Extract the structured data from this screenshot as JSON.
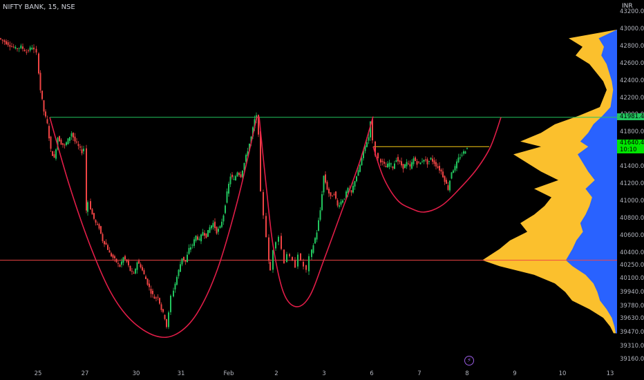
{
  "header": {
    "symbol": "NIFTY BANK, 15, NSE",
    "currency": "INR"
  },
  "price_axis": [
    "43200.00",
    "43000.00",
    "42800.00",
    "42600.00",
    "42400.00",
    "42200.00",
    "42000.00",
    "41800.00",
    "41600.00",
    "41400.00",
    "41200.00",
    "41000.00",
    "40800.00",
    "40600.00",
    "40400.00",
    "40250.00",
    "40100.00",
    "39940.00",
    "39780.00",
    "39630.00",
    "39470.00",
    "39310.00",
    "39160.00"
  ],
  "time_axis": [
    "25",
    "27",
    "30",
    "31",
    "Feb",
    "2",
    "3",
    "6",
    "7",
    "8",
    "9",
    "10",
    "13"
  ],
  "tags": {
    "resistance": "41981.45",
    "last_price": "41640.40",
    "countdown": "10:10"
  },
  "chart_data": {
    "type": "candlestick",
    "title": "NIFTY BANK, 15, NSE",
    "currency": "INR",
    "ylim": [
      39160,
      43200
    ],
    "x_ticks": [
      "25",
      "27",
      "30",
      "31",
      "Feb",
      "2",
      "3",
      "6",
      "7",
      "8",
      "9",
      "10",
      "13"
    ],
    "key_levels": {
      "resistance": 41981.45,
      "support": 40320,
      "inner_resistance": 41640
    },
    "last_price": 41640.4,
    "colors": {
      "up": "#22c55e",
      "down": "#ef4444",
      "curve": "#e11d48",
      "resistance": "#22c55e",
      "support": "#ef4444",
      "inner_line": "#facc15",
      "vp_blue": "#2962ff",
      "vp_yellow": "#fbc02d"
    },
    "path_points": [
      [
        0,
        42900
      ],
      [
        8,
        42860
      ],
      [
        16,
        42820
      ],
      [
        24,
        42780
      ],
      [
        32,
        42800
      ],
      [
        40,
        42740
      ],
      [
        48,
        42800
      ],
      [
        55,
        42720
      ],
      [
        60,
        42300
      ],
      [
        65,
        42050
      ],
      [
        70,
        41900
      ],
      [
        75,
        41600
      ],
      [
        80,
        41500
      ],
      [
        85,
        41750
      ],
      [
        90,
        41680
      ],
      [
        95,
        41650
      ],
      [
        100,
        41720
      ],
      [
        105,
        41800
      ],
      [
        110,
        41700
      ],
      [
        115,
        41640
      ],
      [
        120,
        41580
      ],
      [
        124,
        41620
      ],
      [
        126,
        40900
      ],
      [
        130,
        41000
      ],
      [
        135,
        40850
      ],
      [
        140,
        40750
      ],
      [
        145,
        40700
      ],
      [
        150,
        40550
      ],
      [
        155,
        40500
      ],
      [
        160,
        40400
      ],
      [
        165,
        40350
      ],
      [
        170,
        40300
      ],
      [
        175,
        40250
      ],
      [
        180,
        40350
      ],
      [
        185,
        40300
      ],
      [
        190,
        40200
      ],
      [
        195,
        40150
      ],
      [
        200,
        40300
      ],
      [
        205,
        40250
      ],
      [
        210,
        40150
      ],
      [
        215,
        40050
      ],
      [
        220,
        39950
      ],
      [
        225,
        39880
      ],
      [
        230,
        39900
      ],
      [
        235,
        39750
      ],
      [
        240,
        39650
      ],
      [
        243,
        39550
      ],
      [
        246,
        39700
      ],
      [
        250,
        39900
      ],
      [
        255,
        40050
      ],
      [
        260,
        40200
      ],
      [
        265,
        40350
      ],
      [
        270,
        40300
      ],
      [
        275,
        40450
      ],
      [
        280,
        40500
      ],
      [
        285,
        40600
      ],
      [
        290,
        40550
      ],
      [
        295,
        40650
      ],
      [
        300,
        40600
      ],
      [
        305,
        40700
      ],
      [
        310,
        40750
      ],
      [
        315,
        40650
      ],
      [
        320,
        40700
      ],
      [
        325,
        40850
      ],
      [
        330,
        41100
      ],
      [
        335,
        41300
      ],
      [
        340,
        41250
      ],
      [
        345,
        41350
      ],
      [
        350,
        41300
      ],
      [
        355,
        41450
      ],
      [
        360,
        41600
      ],
      [
        365,
        41750
      ],
      [
        370,
        41950
      ],
      [
        373,
        41990
      ],
      [
        376,
        41800
      ],
      [
        380,
        41100
      ],
      [
        384,
        40850
      ],
      [
        388,
        40600
      ],
      [
        390,
        40300
      ],
      [
        394,
        40200
      ],
      [
        398,
        40450
      ],
      [
        402,
        40550
      ],
      [
        406,
        40600
      ],
      [
        410,
        40450
      ],
      [
        414,
        40300
      ],
      [
        418,
        40400
      ],
      [
        422,
        40350
      ],
      [
        426,
        40300
      ],
      [
        430,
        40250
      ],
      [
        434,
        40400
      ],
      [
        438,
        40300
      ],
      [
        442,
        40250
      ],
      [
        446,
        40200
      ],
      [
        450,
        40350
      ],
      [
        455,
        40500
      ],
      [
        460,
        40650
      ],
      [
        465,
        40900
      ],
      [
        470,
        41300
      ],
      [
        475,
        41150
      ],
      [
        480,
        41050
      ],
      [
        485,
        41100
      ],
      [
        490,
        40950
      ],
      [
        495,
        41000
      ],
      [
        500,
        41050
      ],
      [
        505,
        41150
      ],
      [
        510,
        41100
      ],
      [
        515,
        41250
      ],
      [
        520,
        41350
      ],
      [
        525,
        41500
      ],
      [
        530,
        41650
      ],
      [
        535,
        41750
      ],
      [
        538,
        41950
      ],
      [
        542,
        41700
      ],
      [
        546,
        41550
      ],
      [
        550,
        41500
      ],
      [
        555,
        41450
      ],
      [
        560,
        41400
      ],
      [
        565,
        41450
      ],
      [
        570,
        41400
      ],
      [
        575,
        41500
      ],
      [
        580,
        41450
      ],
      [
        585,
        41400
      ],
      [
        590,
        41450
      ],
      [
        595,
        41400
      ],
      [
        600,
        41500
      ],
      [
        605,
        41450
      ],
      [
        610,
        41450
      ],
      [
        615,
        41500
      ],
      [
        620,
        41450
      ],
      [
        625,
        41500
      ],
      [
        630,
        41450
      ],
      [
        635,
        41400
      ],
      [
        640,
        41350
      ],
      [
        645,
        41250
      ],
      [
        650,
        41150
      ],
      [
        655,
        41350
      ],
      [
        660,
        41400
      ],
      [
        665,
        41500
      ],
      [
        670,
        41550
      ],
      [
        675,
        41600
      ],
      [
        679,
        41640
      ]
    ],
    "curves": [
      {
        "name": "",
        "points": [
          [
            72,
            41981
          ],
          [
            100,
            41200
          ],
          [
            130,
            40500
          ],
          [
            160,
            39950
          ],
          [
            190,
            39620
          ],
          [
            225,
            39440
          ],
          [
            255,
            39460
          ],
          [
            285,
            39700
          ],
          [
            315,
            40220
          ],
          [
            345,
            41050
          ],
          [
            372,
            41990
          ]
        ]
      },
      {
        "name": "",
        "points": [
          [
            375,
            41990
          ],
          [
            385,
            41200
          ],
          [
            395,
            40500
          ],
          [
            410,
            39950
          ],
          [
            428,
            39780
          ],
          [
            448,
            39900
          ],
          [
            470,
            40350
          ],
          [
            495,
            40900
          ],
          [
            520,
            41450
          ],
          [
            540,
            41990
          ]
        ]
      },
      {
        "name": "",
        "points": [
          [
            540,
            41640
          ],
          [
            555,
            41280
          ],
          [
            575,
            41020
          ],
          [
            595,
            40920
          ],
          [
            615,
            40880
          ],
          [
            640,
            40960
          ],
          [
            665,
            41150
          ],
          [
            690,
            41380
          ],
          [
            710,
            41640
          ],
          [
            725,
            41981
          ]
        ]
      }
    ],
    "volume_profile": [
      [
        43000,
        0
      ],
      [
        42900,
        70
      ],
      [
        42800,
        50
      ],
      [
        42700,
        60
      ],
      [
        42600,
        40
      ],
      [
        42500,
        30
      ],
      [
        42400,
        20
      ],
      [
        42300,
        15
      ],
      [
        42200,
        20
      ],
      [
        42100,
        25
      ],
      [
        42000,
        55
      ],
      [
        41900,
        90
      ],
      [
        41800,
        110
      ],
      [
        41700,
        140
      ],
      [
        41640,
        110
      ],
      [
        41550,
        150
      ],
      [
        41450,
        130
      ],
      [
        41350,
        110
      ],
      [
        41250,
        85
      ],
      [
        41150,
        120
      ],
      [
        41050,
        95
      ],
      [
        40950,
        105
      ],
      [
        40850,
        120
      ],
      [
        40750,
        140
      ],
      [
        40650,
        130
      ],
      [
        40550,
        155
      ],
      [
        40450,
        170
      ],
      [
        40320,
        195
      ],
      [
        40250,
        170
      ],
      [
        40150,
        120
      ],
      [
        40050,
        90
      ],
      [
        39950,
        75
      ],
      [
        39850,
        65
      ],
      [
        39750,
        40
      ],
      [
        39650,
        20
      ],
      [
        39550,
        10
      ],
      [
        39470,
        5
      ]
    ],
    "volume_profile_blue_ratio": 0.38
  }
}
